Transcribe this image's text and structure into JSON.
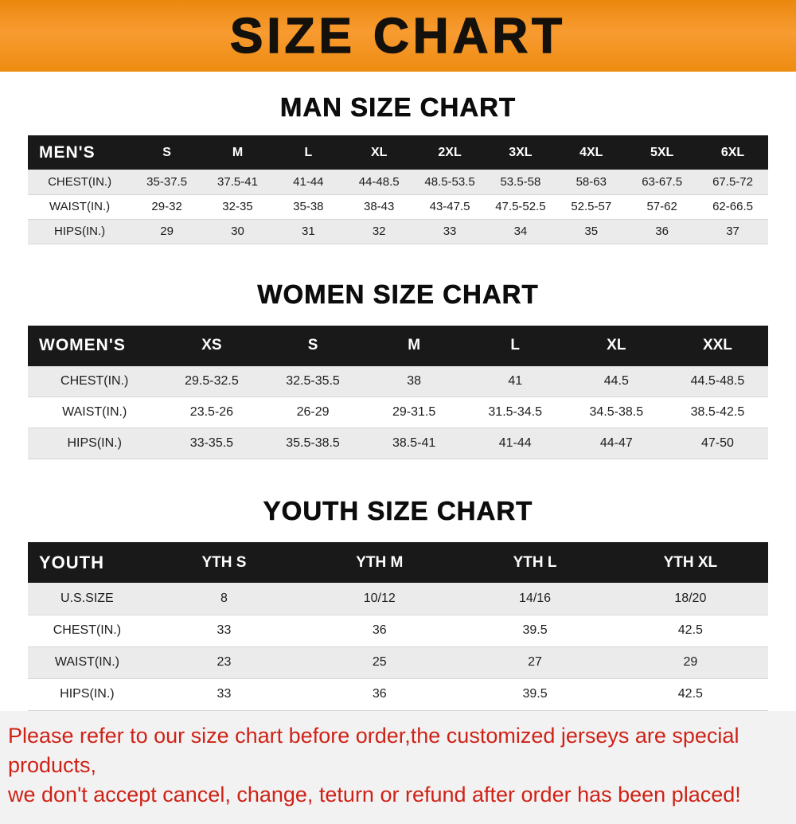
{
  "banner": {
    "title": "SIZE CHART",
    "bg_color": "#f6921e",
    "text_color": "#14110d"
  },
  "sections": [
    {
      "heading": "MAN SIZE CHART"
    },
    {
      "heading": "WOMEN SIZE CHART"
    },
    {
      "heading": "YOUTH SIZE CHART"
    }
  ],
  "footer": {
    "line1": "Please refer to our size chart before order,the customized jerseys are special products,",
    "line2": "we don't accept cancel, change, teturn or refund after order has been placed!",
    "text_color": "#cf2217"
  },
  "chart_data": [
    {
      "type": "table",
      "title": "MAN SIZE CHART",
      "columns": [
        "MEN'S",
        "S",
        "M",
        "L",
        "XL",
        "2XL",
        "3XL",
        "4XL",
        "5XL",
        "6XL"
      ],
      "rows": [
        [
          "CHEST(IN.)",
          "35-37.5",
          "37.5-41",
          "41-44",
          "44-48.5",
          "48.5-53.5",
          "53.5-58",
          "58-63",
          "63-67.5",
          "67.5-72"
        ],
        [
          "WAIST(IN.)",
          "29-32",
          "32-35",
          "35-38",
          "38-43",
          "43-47.5",
          "47.5-52.5",
          "52.5-57",
          "57-62",
          "62-66.5"
        ],
        [
          "HIPS(IN.)",
          "29",
          "30",
          "31",
          "32",
          "33",
          "34",
          "35",
          "36",
          "37"
        ]
      ]
    },
    {
      "type": "table",
      "title": "WOMEN SIZE CHART",
      "columns": [
        "WOMEN'S",
        "XS",
        "S",
        "M",
        "L",
        "XL",
        "XXL"
      ],
      "rows": [
        [
          "CHEST(IN.)",
          "29.5-32.5",
          "32.5-35.5",
          "38",
          "41",
          "44.5",
          "44.5-48.5"
        ],
        [
          "WAIST(IN.)",
          "23.5-26",
          "26-29",
          "29-31.5",
          "31.5-34.5",
          "34.5-38.5",
          "38.5-42.5"
        ],
        [
          "HIPS(IN.)",
          "33-35.5",
          "35.5-38.5",
          "38.5-41",
          "41-44",
          "44-47",
          "47-50"
        ]
      ]
    },
    {
      "type": "table",
      "title": "YOUTH SIZE CHART",
      "columns": [
        "YOUTH",
        "YTH S",
        "YTH M",
        "YTH L",
        "YTH XL"
      ],
      "rows": [
        [
          "U.S.SIZE",
          "8",
          "10/12",
          "14/16",
          "18/20"
        ],
        [
          "CHEST(IN.)",
          "33",
          "36",
          "39.5",
          "42.5"
        ],
        [
          "WAIST(IN.)",
          "23",
          "25",
          "27",
          "29"
        ],
        [
          "HIPS(IN.)",
          "33",
          "36",
          "39.5",
          "42.5"
        ]
      ]
    }
  ]
}
